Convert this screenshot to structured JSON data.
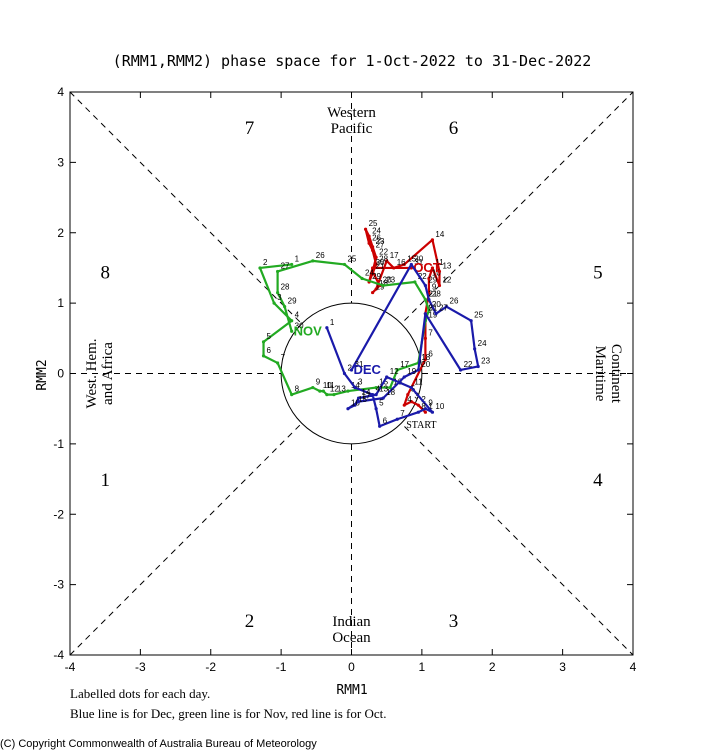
{
  "chart_data": {
    "type": "line",
    "title": "(RMM1,RMM2) phase space for  1-Oct-2022 to 31-Dec-2022",
    "xlabel": "RMM1",
    "ylabel": "RMM2",
    "xlim": [
      -4,
      4
    ],
    "ylim": [
      -4,
      4
    ],
    "xticks": [
      "-4",
      "-3",
      "-2",
      "-1",
      "0",
      "1",
      "2",
      "3",
      "4"
    ],
    "yticks": [
      "-4",
      "-3",
      "-2",
      "-1",
      "0",
      "1",
      "2",
      "3",
      "4"
    ],
    "phases": [
      {
        "label": "1",
        "x": -3.5,
        "y": -1.5
      },
      {
        "label": "2",
        "x": -1.45,
        "y": -3.5
      },
      {
        "label": "3",
        "x": 1.45,
        "y": -3.5
      },
      {
        "label": "4",
        "x": 3.5,
        "y": -1.5
      },
      {
        "label": "5",
        "x": 3.5,
        "y": 1.45
      },
      {
        "label": "6",
        "x": 1.45,
        "y": 3.5
      },
      {
        "label": "7",
        "x": -1.45,
        "y": 3.5
      },
      {
        "label": "8",
        "x": -3.5,
        "y": 1.45
      }
    ],
    "regions": {
      "top": [
        "Western",
        "Pacific"
      ],
      "bottom": [
        "Indian",
        "Ocean"
      ],
      "left": [
        "West. Hem.",
        "and Africa"
      ],
      "right": [
        "Maritime",
        "Continent"
      ]
    },
    "series": [
      {
        "name": "Oct",
        "color": "#cc0000",
        "end_label": "OCT",
        "start_label": "START",
        "points": [
          [
            1.05,
            -0.55
          ],
          [
            0.95,
            -0.45
          ],
          [
            0.85,
            -0.4
          ],
          [
            0.75,
            -0.45
          ],
          [
            0.8,
            -0.3
          ],
          [
            1.05,
            0.2
          ],
          [
            1.05,
            0.5
          ],
          [
            1.05,
            0.85
          ],
          [
            1.1,
            1.15
          ],
          [
            1.1,
            1.35
          ],
          [
            1.15,
            1.5
          ],
          [
            1.25,
            1.25
          ],
          [
            1.25,
            1.45
          ],
          [
            1.15,
            1.9
          ],
          [
            0.75,
            1.55
          ],
          [
            0.6,
            1.5
          ],
          [
            0.5,
            1.6
          ],
          [
            0.35,
            1.2
          ],
          [
            0.3,
            1.15
          ],
          [
            0.4,
            1.25
          ],
          [
            0.3,
            1.45
          ],
          [
            0.35,
            1.65
          ],
          [
            0.3,
            1.8
          ],
          [
            0.25,
            1.95
          ],
          [
            0.2,
            2.05
          ],
          [
            0.25,
            1.85
          ],
          [
            0.3,
            1.75
          ],
          [
            0.35,
            1.55
          ],
          [
            0.25,
            1.3
          ],
          [
            0.3,
            1.5
          ],
          [
            0.85,
            1.5
          ]
        ]
      },
      {
        "name": "Nov",
        "color": "#22aa22",
        "end_label": "NOV",
        "start_label": "",
        "points": [
          [
            -0.85,
            1.55
          ],
          [
            -1.3,
            1.5
          ],
          [
            -1.1,
            1.0
          ],
          [
            -0.85,
            0.75
          ],
          [
            -1.25,
            0.45
          ],
          [
            -1.25,
            0.25
          ],
          [
            -1.05,
            0.15
          ],
          [
            -0.85,
            -0.3
          ],
          [
            -0.55,
            -0.2
          ],
          [
            -0.45,
            -0.25
          ],
          [
            -0.4,
            -0.25
          ],
          [
            -0.35,
            -0.3
          ],
          [
            -0.25,
            -0.3
          ],
          [
            -0.05,
            -0.25
          ],
          [
            0.35,
            -0.2
          ],
          [
            0.55,
            -0.2
          ],
          [
            0.65,
            0.05
          ],
          [
            0.95,
            0.15
          ],
          [
            1.05,
            0.75
          ],
          [
            1.1,
            0.9
          ],
          [
            1.05,
            1.05
          ],
          [
            0.9,
            1.3
          ],
          [
            0.45,
            1.25
          ],
          [
            0.15,
            1.35
          ],
          [
            -0.1,
            1.55
          ],
          [
            -0.55,
            1.6
          ],
          [
            -1.05,
            1.45
          ],
          [
            -1.05,
            1.15
          ],
          [
            -0.95,
            0.95
          ],
          [
            -0.85,
            0.6
          ]
        ]
      },
      {
        "name": "Dec",
        "color": "#1a1aaa",
        "end_label": "DEC",
        "start_label": "",
        "points": [
          [
            -0.35,
            0.65
          ],
          [
            -0.1,
            0.0
          ],
          [
            0.05,
            -0.2
          ],
          [
            0.3,
            -0.3
          ],
          [
            0.35,
            -0.5
          ],
          [
            0.4,
            -0.75
          ],
          [
            0.65,
            -0.65
          ],
          [
            0.95,
            -0.55
          ],
          [
            1.05,
            -0.5
          ],
          [
            1.15,
            -0.55
          ],
          [
            0.85,
            -0.2
          ],
          [
            0.5,
            -0.05
          ],
          [
            0.35,
            -0.3
          ],
          [
            0.1,
            -0.35
          ],
          [
            0.05,
            -0.45
          ],
          [
            -0.05,
            -0.5
          ],
          [
            0.1,
            -0.4
          ],
          [
            0.45,
            -0.35
          ],
          [
            0.75,
            -0.05
          ],
          [
            0.95,
            0.05
          ],
          [
            1.05,
            0.85
          ],
          [
            1.55,
            0.05
          ],
          [
            1.8,
            0.1
          ],
          [
            1.75,
            0.35
          ],
          [
            1.7,
            0.75
          ],
          [
            1.35,
            0.95
          ],
          [
            1.2,
            0.85
          ],
          [
            1.1,
            1.05
          ],
          [
            1.05,
            1.25
          ],
          [
            0.85,
            1.55
          ],
          [
            0.0,
            0.05
          ]
        ]
      }
    ]
  },
  "captions": {
    "line1": "Labelled dots for each day.",
    "line2": "Blue line is for Dec, green line is for Nov, red line is for Oct."
  },
  "copyright": "(C) Copyright Commonwealth of Australia Bureau of Meteorology"
}
